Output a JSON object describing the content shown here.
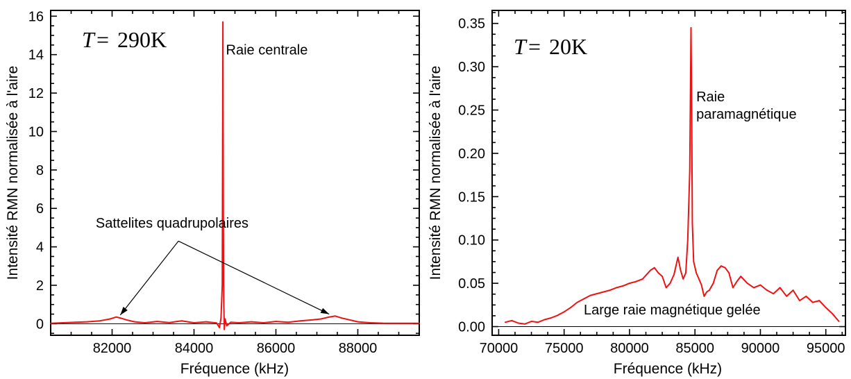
{
  "colors": {
    "series": "#ee1111",
    "axis": "#000000",
    "baseline": "#000000"
  },
  "chart_data": [
    {
      "type": "line",
      "xlabel": "Fréquence (kHz)",
      "ylabel": "Intensité RMN normalisée à l'aire",
      "xlim": [
        80500,
        89500
      ],
      "ylim": [
        -0.6,
        16.3
      ],
      "x_ticks": [
        82000,
        84000,
        86000,
        88000
      ],
      "x_tick_labels": [
        "82000",
        "84000",
        "86000",
        "88000"
      ],
      "y_ticks": [
        0,
        2,
        4,
        6,
        8,
        10,
        12,
        14,
        16
      ],
      "y_tick_labels": [
        "0",
        "2",
        "4",
        "6",
        "8",
        "10",
        "12",
        "14",
        "16"
      ],
      "temperature": {
        "symbol": "T",
        "equals": "=",
        "value": "290K"
      },
      "annotations": [
        {
          "text": "Raie centrale",
          "x": 84780,
          "y": 14.0
        },
        {
          "text": "Sattelites quadrupolaires",
          "x": 81600,
          "y": 5.0
        }
      ],
      "arrows": [
        {
          "from": [
            83620,
            4.3
          ],
          "to": [
            82200,
            0.45
          ]
        },
        {
          "from": [
            83620,
            4.3
          ],
          "to": [
            87300,
            0.5
          ]
        }
      ],
      "grid": false,
      "series": [
        {
          "x": [
            80500,
            80800,
            81100,
            81400,
            81700,
            81950,
            82100,
            82200,
            82350,
            82550,
            82800,
            83100,
            83400,
            83700,
            84000,
            84300,
            84550,
            84620,
            84660,
            84690,
            84705,
            84715,
            84725,
            84740,
            84760,
            84800,
            84900,
            85100,
            85400,
            85700,
            86000,
            86300,
            86600,
            86900,
            87100,
            87300,
            87450,
            87600,
            87800,
            88000,
            88300,
            88600,
            88900,
            89200,
            89500
          ],
          "y": [
            0.02,
            0.05,
            0.08,
            0.1,
            0.15,
            0.25,
            0.35,
            0.3,
            0.2,
            0.1,
            0.05,
            0.12,
            0.06,
            0.15,
            0.05,
            0.1,
            0.04,
            -0.2,
            0.3,
            2.0,
            15.7,
            6.0,
            1.2,
            -0.3,
            0.25,
            -0.1,
            0.08,
            0.05,
            0.1,
            0.05,
            0.12,
            0.08,
            0.15,
            0.2,
            0.25,
            0.35,
            0.4,
            0.3,
            0.2,
            0.1,
            0.05,
            0.03,
            0.02,
            0.02,
            0.02
          ]
        }
      ]
    },
    {
      "type": "line",
      "xlabel": "Fréquence (kHz)",
      "ylabel": "Intensité RMN normalisée à l'aire",
      "xlim": [
        69500,
        96500
      ],
      "ylim": [
        -0.01,
        0.365
      ],
      "x_ticks": [
        70000,
        75000,
        80000,
        85000,
        90000,
        95000
      ],
      "x_tick_labels": [
        "70000",
        "75000",
        "80000",
        "85000",
        "90000",
        "95000"
      ],
      "y_ticks": [
        0,
        0.05,
        0.1,
        0.15,
        0.2,
        0.25,
        0.3,
        0.35
      ],
      "y_tick_labels": [
        "0.00",
        "0.05",
        "0.10",
        "0.15",
        "0.20",
        "0.25",
        "0.30",
        "0.35"
      ],
      "temperature": {
        "symbol": "T",
        "equals": "=",
        "value": "20K"
      },
      "annotations": [
        {
          "text": "Raie",
          "x": 85100,
          "y": 0.26
        },
        {
          "text": "paramagnétique",
          "x": 85100,
          "y": 0.24
        },
        {
          "text": "Large raie magnétique gelée",
          "x": 76500,
          "y": 0.014
        }
      ],
      "arrows": [],
      "grid": false,
      "series": [
        {
          "x": [
            70500,
            71000,
            71500,
            72000,
            72500,
            73000,
            73500,
            74000,
            74500,
            75000,
            75500,
            76000,
            76500,
            77000,
            77500,
            78000,
            78500,
            79000,
            79500,
            80000,
            80500,
            81000,
            81300,
            81600,
            81900,
            82200,
            82500,
            82800,
            83100,
            83400,
            83700,
            83900,
            84100,
            84300,
            84450,
            84600,
            84700,
            84750,
            84800,
            84900,
            85100,
            85300,
            85500,
            85700,
            85900,
            86100,
            86400,
            86700,
            87000,
            87300,
            87600,
            87900,
            88200,
            88500,
            89000,
            89500,
            90000,
            90500,
            91000,
            91500,
            92000,
            92500,
            93000,
            93500,
            94000,
            94500,
            95000,
            95500,
            96000
          ],
          "y": [
            0.005,
            0.007,
            0.004,
            0.003,
            0.006,
            0.005,
            0.008,
            0.01,
            0.013,
            0.017,
            0.022,
            0.028,
            0.032,
            0.036,
            0.038,
            0.04,
            0.042,
            0.045,
            0.047,
            0.05,
            0.052,
            0.055,
            0.06,
            0.065,
            0.068,
            0.062,
            0.058,
            0.045,
            0.05,
            0.06,
            0.08,
            0.065,
            0.055,
            0.062,
            0.1,
            0.18,
            0.345,
            0.25,
            0.12,
            0.075,
            0.062,
            0.055,
            0.048,
            0.035,
            0.04,
            0.042,
            0.05,
            0.065,
            0.07,
            0.068,
            0.062,
            0.045,
            0.052,
            0.058,
            0.05,
            0.045,
            0.048,
            0.042,
            0.038,
            0.045,
            0.035,
            0.042,
            0.03,
            0.035,
            0.028,
            0.03,
            0.022,
            0.015,
            0.006
          ]
        }
      ]
    }
  ]
}
